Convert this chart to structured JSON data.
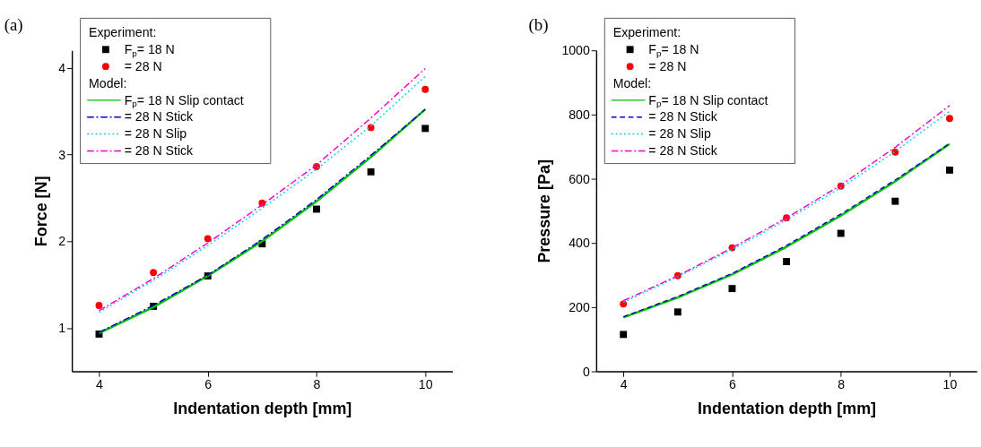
{
  "chart_data": [
    {
      "type": "line",
      "title": "(a)",
      "xlabel": "Indentation depth [mm]",
      "ylabel": "Force [N]",
      "legend_title": "Experiment:",
      "annotations": [
        "Model:"
      ],
      "x": [
        4,
        5,
        6,
        7,
        8,
        9,
        10
      ],
      "xlim": [
        3.5,
        10.5
      ],
      "xticks": [
        4,
        6,
        8,
        10
      ],
      "ylim": [
        0.5,
        4.2
      ],
      "yticks": [
        1,
        2,
        3,
        4
      ],
      "grid": false,
      "legend": "top left",
      "series": [
        {
          "name": "F$_{p}$= 18 N",
          "type": "scatter",
          "marker": "square",
          "color": "#000000",
          "values": [
            0.93,
            1.25,
            1.6,
            1.97,
            2.37,
            2.8,
            3.3
          ]
        },
        {
          "name": "= 28 N",
          "type": "scatter",
          "marker": "circle",
          "color": "#ff0000",
          "values": [
            1.26,
            1.64,
            2.03,
            2.44,
            2.86,
            3.31,
            3.75
          ]
        },
        {
          "name": "F$_{p}$= 18 N Slip contact",
          "line_style": "solid",
          "color": "#00c000",
          "values": [
            0.94,
            1.24,
            1.6,
            2.0,
            2.46,
            2.97,
            3.52
          ]
        },
        {
          "name": "= 28 N Stick",
          "line_style": "dashdot",
          "color": "#0000cc",
          "values": [
            0.95,
            1.26,
            1.61,
            2.02,
            2.48,
            2.99,
            3.52
          ]
        },
        {
          "name": "= 28 N Slip",
          "line_style": "dotted",
          "color": "#00ccee",
          "values": [
            1.18,
            1.55,
            1.95,
            2.38,
            2.83,
            3.33,
            3.9
          ]
        },
        {
          "name": "= 28 N Stick",
          "line_style": "dashdot",
          "color": "#ee00cc",
          "values": [
            1.2,
            1.57,
            1.98,
            2.42,
            2.88,
            3.42,
            3.99
          ]
        }
      ]
    },
    {
      "type": "line",
      "title": "(b)",
      "xlabel": "Indentation depth [mm]",
      "ylabel": "Pressure [Pa]",
      "legend_title": "Experiment:",
      "annotations": [
        "Model:"
      ],
      "x": [
        4,
        5,
        6,
        7,
        8,
        9,
        10
      ],
      "xlim": [
        3.5,
        10.5
      ],
      "xticks": [
        4,
        6,
        8,
        10
      ],
      "ylim": [
        0,
        1000
      ],
      "yticks": [
        0,
        200,
        400,
        600,
        800,
        1000
      ],
      "grid": false,
      "legend": "top left",
      "series": [
        {
          "name": "F$_{p}$= 18 N",
          "type": "scatter",
          "marker": "square",
          "color": "#000000",
          "values": [
            115,
            185,
            258,
            342,
            430,
            530,
            627
          ]
        },
        {
          "name": "= 28 N",
          "type": "scatter",
          "marker": "circle",
          "color": "#ff0000",
          "values": [
            210,
            298,
            385,
            478,
            577,
            683,
            788
          ]
        },
        {
          "name": "F$_{p}$= 18 N Slip contact",
          "line_style": "solid",
          "color": "#00c000",
          "values": [
            168,
            230,
            302,
            388,
            485,
            592,
            708
          ]
        },
        {
          "name": "= 28 N Stick",
          "line_style": "dashed",
          "color": "#0000cc",
          "values": [
            170,
            233,
            305,
            392,
            490,
            596,
            710
          ]
        },
        {
          "name": "= 28 N Slip",
          "line_style": "dotted",
          "color": "#00ccee",
          "values": [
            215,
            295,
            380,
            472,
            572,
            685,
            810
          ]
        },
        {
          "name": "= 28 N Stick",
          "line_style": "dashdot",
          "color": "#ee00cc",
          "values": [
            220,
            298,
            385,
            478,
            580,
            698,
            828
          ]
        }
      ]
    }
  ]
}
